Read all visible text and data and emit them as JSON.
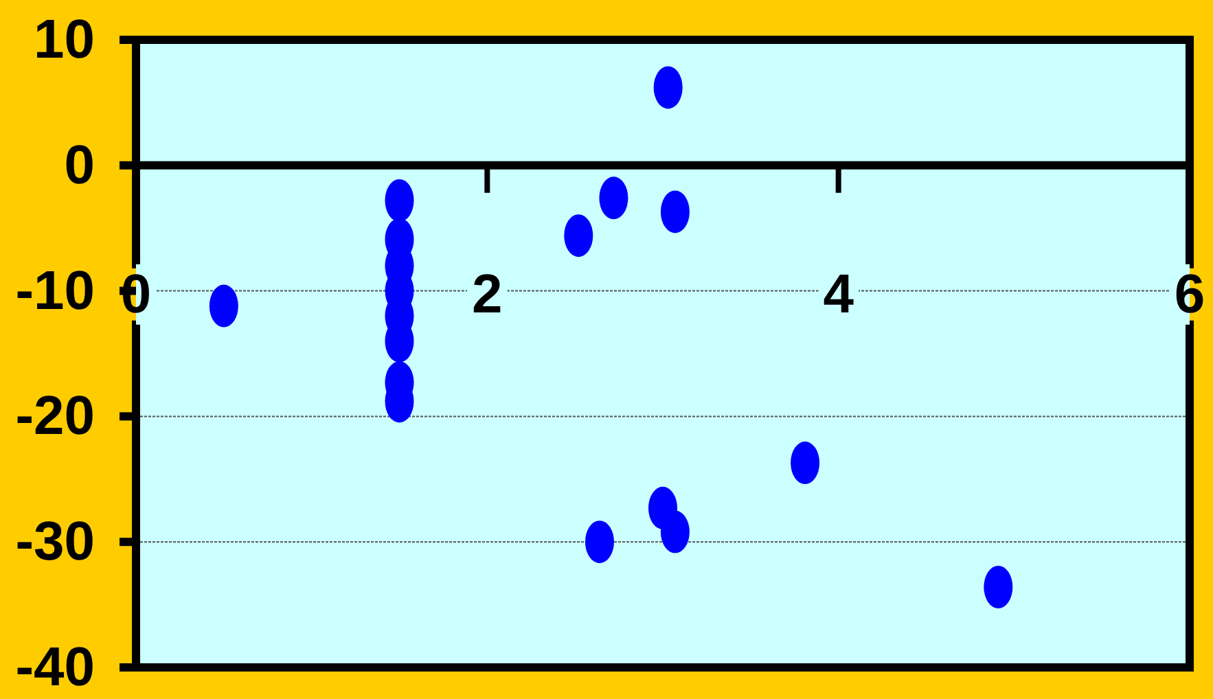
{
  "chart_data": {
    "type": "scatter",
    "x": [
      0.5,
      1.5,
      1.5,
      1.5,
      1.5,
      1.5,
      1.5,
      1.5,
      1.5,
      2.52,
      2.72,
      3.03,
      3.07,
      2.64,
      3.0,
      3.07,
      3.81,
      4.91
    ],
    "values": [
      -11.2,
      -2.8,
      -5.9,
      -8,
      -10,
      -12,
      -14,
      -17.3,
      -18.8,
      -5.6,
      -2.6,
      6.2,
      -3.7,
      -30,
      -27.3,
      -29.2,
      -23.7,
      -33.6
    ],
    "color": "#0000ff",
    "xlim": [
      0,
      6
    ],
    "xticks": [
      0,
      2,
      4,
      6
    ],
    "ylim": [
      -40,
      10
    ],
    "yticks": [
      -40,
      -30,
      -20,
      -10,
      0,
      10
    ],
    "grid": "y",
    "marker": "circle"
  }
}
